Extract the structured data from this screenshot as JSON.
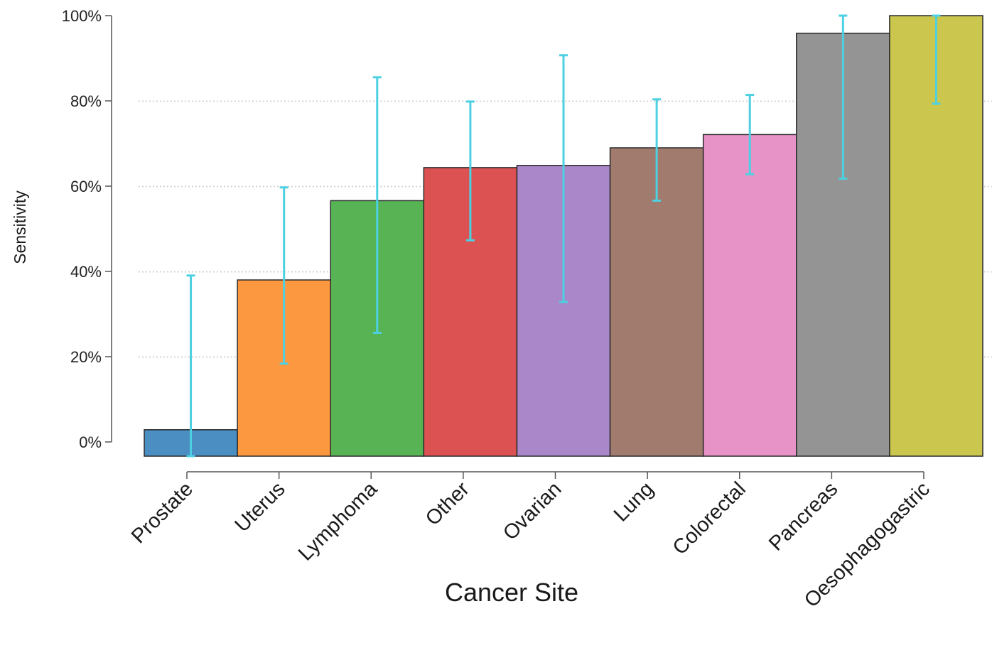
{
  "chart_data": {
    "type": "bar",
    "xlabel": "Cancer Site",
    "ylabel": "Sensitivity",
    "ylim": [
      0,
      100
    ],
    "yticks": [
      "0%",
      "20%",
      "40%",
      "60%",
      "80%",
      "100%"
    ],
    "grid": "horizontal dotted",
    "categories": [
      "Prostate",
      "Uterus",
      "Lymphoma",
      "Other",
      "Ovarian",
      "Lung",
      "Colorectal",
      "Pancreas",
      "Oesophagogastric"
    ],
    "values": [
      6,
      40,
      58,
      65.5,
      66,
      70,
      73,
      96,
      100
    ],
    "error_low": [
      0,
      21,
      28,
      49,
      35,
      58,
      64,
      63,
      80
    ],
    "error_high": [
      41,
      61,
      86,
      80.5,
      91,
      81,
      82,
      100,
      100
    ],
    "colors": [
      "#4a8ec2",
      "#fc9840",
      "#58b355",
      "#dc5252",
      "#a987c8",
      "#a27b6f",
      "#e893c8",
      "#949494",
      "#cbc74e"
    ],
    "error_color": "#4dd0e1"
  }
}
